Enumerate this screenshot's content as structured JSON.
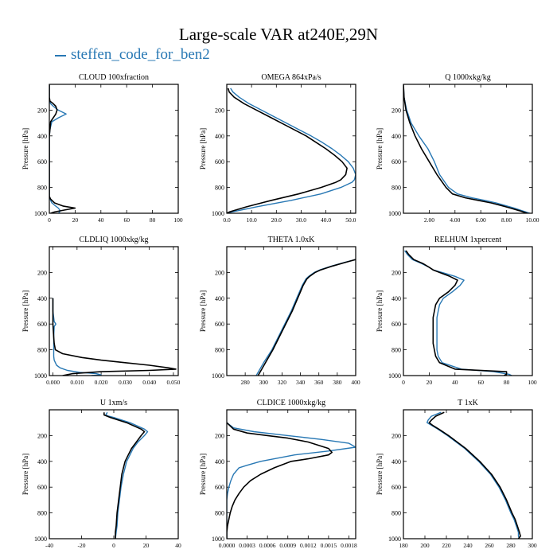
{
  "title": "Large-scale VAR at240E,29N",
  "legend": {
    "label": "steffen_code_for_ben2",
    "color": "#2878b4"
  },
  "colors": {
    "case_a": "#000000",
    "case_b": "#2878b4"
  },
  "chart_data": [
    {
      "type": "line",
      "title": "CLOUD  100xfraction",
      "ylabel": "Pressure [hPa]",
      "xlim": [
        0,
        100
      ],
      "ylim": [
        1000,
        0
      ],
      "yticks": [
        200,
        400,
        600,
        800,
        1000
      ],
      "xticks": [
        0,
        20,
        40,
        60,
        80,
        100
      ],
      "xticklabels": [
        "0",
        "20",
        "40",
        "60",
        "80",
        "100"
      ],
      "series": [
        {
          "p": [
            5,
            30,
            60,
            100,
            130,
            150,
            170,
            200,
            230,
            260,
            290,
            350,
            400,
            500,
            600,
            700,
            800,
            850,
            870,
            890,
            920,
            945,
            960,
            975,
            990,
            1000
          ],
          "values": [
            0,
            0,
            0,
            0,
            0.5,
            3,
            5,
            6,
            5,
            3,
            1,
            0.5,
            0,
            0,
            0,
            0,
            0,
            0,
            0,
            1,
            4,
            11,
            20,
            12,
            4,
            1
          ]
        },
        {
          "p": [
            5,
            30,
            60,
            100,
            130,
            150,
            170,
            200,
            230,
            260,
            290,
            350,
            400,
            500,
            600,
            700,
            800,
            850,
            870,
            890,
            920,
            945,
            960,
            975,
            990,
            1000
          ],
          "values": [
            0,
            0,
            0,
            0,
            0,
            1,
            3,
            7,
            13,
            7,
            2,
            0.5,
            0,
            0,
            0,
            0,
            0,
            0,
            0,
            0.5,
            2,
            5,
            7,
            8,
            8,
            7
          ]
        }
      ]
    },
    {
      "type": "line",
      "title": "OMEGA  864xPa/s",
      "ylabel": "Pressure [hPa]",
      "xlim": [
        0,
        52
      ],
      "ylim": [
        1000,
        0
      ],
      "yticks": [
        200,
        400,
        600,
        800,
        1000
      ],
      "xticks": [
        0,
        10,
        20,
        30,
        40,
        50
      ],
      "xticklabels": [
        "0.0",
        "10.0",
        "20.0",
        "30.0",
        "40.0",
        "50.0"
      ],
      "series": [
        {
          "p": [
            30,
            60,
            100,
            150,
            200,
            250,
            300,
            350,
            400,
            450,
            500,
            550,
            600,
            650,
            700,
            740,
            760,
            800,
            850,
            900,
            950,
            990,
            1000
          ],
          "values": [
            0.5,
            1,
            3,
            7,
            12,
            17,
            22,
            27,
            32,
            36,
            40,
            43.5,
            46.5,
            48.5,
            48,
            46,
            44,
            38,
            29,
            18,
            8,
            1,
            0
          ]
        },
        {
          "p": [
            30,
            60,
            100,
            150,
            200,
            250,
            300,
            350,
            400,
            450,
            500,
            550,
            600,
            650,
            700,
            740,
            760,
            800,
            850,
            900,
            950,
            990,
            1000
          ],
          "values": [
            1.5,
            2.5,
            5,
            9,
            14,
            19,
            24,
            29,
            34,
            38.5,
            42.5,
            46,
            49,
            51,
            52,
            51.5,
            50.5,
            46,
            38,
            26,
            12,
            2,
            0
          ]
        }
      ]
    },
    {
      "type": "line",
      "title": "Q  1000xkg/kg",
      "ylabel": "Pressure [hPa]",
      "xlim": [
        0,
        10
      ],
      "ylim": [
        1000,
        0
      ],
      "yticks": [
        200,
        400,
        600,
        800,
        1000
      ],
      "xticks": [
        2,
        4,
        6,
        8,
        10
      ],
      "xticklabels": [
        "2.00",
        "4.00",
        "6.00",
        "8.00",
        "10.00"
      ],
      "series": [
        {
          "p": [
            0,
            100,
            200,
            300,
            400,
            500,
            600,
            700,
            800,
            850,
            880,
            900,
            920,
            940,
            960,
            980,
            1000
          ],
          "values": [
            0,
            0.05,
            0.2,
            0.5,
            0.9,
            1.4,
            2,
            2.6,
            3.3,
            3.8,
            4.8,
            5.8,
            6.8,
            7.6,
            8.3,
            9,
            9.6
          ]
        },
        {
          "p": [
            0,
            100,
            200,
            300,
            400,
            500,
            600,
            700,
            800,
            850,
            880,
            900,
            920,
            940,
            960,
            980,
            1000
          ],
          "values": [
            0,
            0.05,
            0.25,
            0.6,
            1.2,
            1.9,
            2.4,
            2.8,
            3.5,
            4.2,
            5.3,
            6.3,
            7.2,
            7.9,
            8.6,
            9.2,
            9.8
          ]
        }
      ]
    },
    {
      "type": "line",
      "title": "CLDLIQ  1000xkg/kg",
      "ylabel": "Pressure [hPa]",
      "xlim": [
        -0.0015,
        0.052
      ],
      "ylim": [
        1000,
        0
      ],
      "yticks": [
        200,
        400,
        600,
        800,
        1000
      ],
      "xticks": [
        0,
        0.01,
        0.02,
        0.03,
        0.04,
        0.05
      ],
      "xticklabels": [
        "0.000",
        "0.010",
        "0.020",
        "0.030",
        "0.040",
        "0.050"
      ],
      "series": [
        {
          "p": [
            400,
            500,
            600,
            700,
            750,
            800,
            830,
            860,
            880,
            900,
            920,
            940,
            950,
            960,
            970,
            985,
            1000
          ],
          "values": [
            0,
            0,
            0,
            0.0003,
            0.0005,
            0.001,
            0.004,
            0.012,
            0.02,
            0.03,
            0.04,
            0.048,
            0.051,
            0.04,
            0.02,
            0.008,
            0.004
          ]
        },
        {
          "p": [
            400,
            500,
            580,
            600,
            620,
            700,
            800,
            850,
            880,
            900,
            920,
            940,
            960,
            975,
            985,
            995,
            1000
          ],
          "values": [
            0,
            0,
            0.0005,
            0.0012,
            0.0005,
            0.0003,
            0.0003,
            0.0003,
            0.0005,
            0.001,
            0.0015,
            0.003,
            0.006,
            0.011,
            0.018,
            0.02,
            0.016
          ]
        }
      ]
    },
    {
      "type": "line",
      "title": "THETA  1.0xK",
      "ylabel": "Pressure [hPa]",
      "xlim": [
        260,
        400
      ],
      "ylim": [
        1000,
        0
      ],
      "yticks": [
        200,
        400,
        600,
        800,
        1000
      ],
      "xticks": [
        280,
        300,
        320,
        340,
        360,
        380,
        400
      ],
      "xticklabels": [
        "280",
        "300",
        "320",
        "340",
        "360",
        "380",
        "400"
      ],
      "series": [
        {
          "p": [
            100,
            120,
            150,
            180,
            200,
            230,
            250,
            300,
            350,
            400,
            500,
            600,
            700,
            800,
            900,
            950,
            1000
          ],
          "values": [
            400,
            390,
            375,
            362,
            356,
            350,
            347,
            343,
            340,
            337,
            331,
            324,
            317,
            310,
            302,
            298,
            294
          ]
        },
        {
          "p": [
            100,
            120,
            150,
            180,
            200,
            230,
            250,
            300,
            350,
            400,
            500,
            600,
            700,
            800,
            900,
            950,
            1000
          ],
          "values": [
            400,
            389,
            374,
            361,
            355,
            349,
            346,
            342,
            339,
            336,
            330,
            323,
            316,
            309,
            300,
            296,
            292
          ]
        }
      ]
    },
    {
      "type": "line",
      "title": "RELHUM  1xpercent",
      "ylabel": "Pressure [hPa]",
      "xlim": [
        0,
        100
      ],
      "ylim": [
        1000,
        0
      ],
      "yticks": [
        200,
        400,
        600,
        800,
        1000
      ],
      "xticks": [
        0,
        20,
        40,
        60,
        80,
        100
      ],
      "xticklabels": [
        "0",
        "20",
        "40",
        "60",
        "80",
        "100"
      ],
      "series": [
        {
          "p": [
            30,
            60,
            100,
            130,
            160,
            180,
            200,
            230,
            260,
            300,
            350,
            400,
            450,
            500,
            550,
            600,
            650,
            700,
            750,
            800,
            850,
            900,
            950,
            970,
            990,
            1000
          ],
          "values": [
            2,
            4,
            8,
            15,
            20,
            23,
            28,
            36,
            42,
            40,
            35,
            28,
            25,
            24,
            23,
            23,
            23,
            23,
            23,
            24,
            25,
            28,
            40,
            80,
            80,
            78
          ]
        },
        {
          "p": [
            30,
            60,
            100,
            130,
            160,
            180,
            200,
            230,
            260,
            300,
            350,
            400,
            450,
            500,
            550,
            600,
            650,
            700,
            750,
            800,
            850,
            900,
            950,
            970,
            990,
            1000
          ],
          "values": [
            1,
            3,
            7,
            14,
            20,
            23,
            30,
            40,
            47,
            44,
            38,
            31,
            28,
            27,
            26,
            26,
            26,
            26,
            26,
            26,
            27,
            30,
            45,
            70,
            82,
            84
          ]
        }
      ]
    },
    {
      "type": "line",
      "title": "U  1xm/s",
      "ylabel": "Pressure [hPa]",
      "xlim": [
        -40,
        40
      ],
      "ylim": [
        1000,
        0
      ],
      "yticks": [
        200,
        400,
        600,
        800,
        1000
      ],
      "xticks": [
        -40,
        -20,
        0,
        20,
        40
      ],
      "xticklabels": [
        "-40",
        "-20",
        "0",
        "20",
        "40"
      ],
      "series": [
        {
          "p": [
            20,
            40,
            50,
            60,
            100,
            150,
            170,
            200,
            250,
            300,
            350,
            400,
            500,
            600,
            700,
            800,
            900,
            950,
            1000
          ],
          "values": [
            -6,
            -6,
            -4,
            -2,
            8,
            17,
            19,
            17,
            14,
            11,
            9,
            7,
            5,
            4,
            3,
            2,
            1.5,
            1,
            1
          ]
        },
        {
          "p": [
            20,
            40,
            50,
            60,
            100,
            150,
            170,
            200,
            250,
            300,
            350,
            400,
            500,
            600,
            700,
            800,
            900,
            950,
            1000
          ],
          "values": [
            -4,
            -5,
            -3,
            0,
            10,
            19,
            21,
            19,
            15,
            12,
            10,
            8,
            6,
            4.5,
            3.5,
            2.5,
            2,
            1.5,
            1
          ]
        }
      ]
    },
    {
      "type": "line",
      "title": "CLDICE  1000xkg/kg",
      "ylabel": "Pressure [hPa]",
      "xlim": [
        0,
        0.0019
      ],
      "ylim": [
        1000,
        0
      ],
      "yticks": [
        200,
        400,
        600,
        800,
        1000
      ],
      "xticks": [
        0,
        0.0003,
        0.0006,
        0.0009,
        0.0012,
        0.0015,
        0.0018
      ],
      "xticklabels": [
        "0.0000",
        "0.0003",
        "0.0006",
        "0.0009",
        "0.0012",
        "0.0015",
        "0.0018"
      ],
      "series": [
        {
          "p": [
            100,
            150,
            180,
            200,
            220,
            250,
            300,
            330,
            350,
            380,
            400,
            450,
            500,
            550,
            600,
            650,
            700,
            750,
            800,
            850,
            900,
            950,
            1000
          ],
          "values": [
            0,
            0.0001,
            0.0003,
            0.0006,
            0.0009,
            0.0012,
            0.0015,
            0.00155,
            0.0015,
            0.0012,
            0.00095,
            0.0007,
            0.0005,
            0.00035,
            0.00025,
            0.00018,
            0.00012,
            8e-05,
            5e-05,
            3e-05,
            1e-05,
            0,
            0
          ]
        },
        {
          "p": [
            100,
            140,
            170,
            200,
            230,
            260,
            290,
            320,
            350,
            400,
            430,
            450,
            500,
            550,
            600,
            650,
            700,
            800,
            900,
            1000
          ],
          "values": [
            0,
            0.0001,
            0.0004,
            0.0009,
            0.0014,
            0.0018,
            0.0019,
            0.0015,
            0.001,
            0.0005,
            0.0003,
            0.00018,
            0.0001,
            6e-05,
            3e-05,
            1e-05,
            0,
            0,
            0,
            0
          ]
        }
      ]
    },
    {
      "type": "line",
      "title": "T  1xK",
      "ylabel": "Pressure [hPa]",
      "xlim": [
        180,
        300
      ],
      "ylim": [
        1000,
        0
      ],
      "yticks": [
        200,
        400,
        600,
        800,
        1000
      ],
      "xticks": [
        180,
        200,
        220,
        240,
        260,
        280,
        300
      ],
      "xticklabels": [
        "180",
        "200",
        "220",
        "240",
        "260",
        "280",
        "300"
      ],
      "series": [
        {
          "p": [
            20,
            50,
            80,
            100,
            120,
            150,
            200,
            250,
            300,
            400,
            500,
            600,
            700,
            800,
            850,
            900,
            950,
            980,
            1000
          ],
          "values": [
            218,
            210,
            206,
            204,
            207,
            213,
            222,
            230,
            238,
            251,
            262,
            270,
            276,
            281,
            284,
            286,
            288,
            289,
            287
          ]
        },
        {
          "p": [
            20,
            50,
            80,
            100,
            120,
            150,
            200,
            250,
            300,
            400,
            500,
            600,
            700,
            800,
            850,
            900,
            950,
            980,
            1000
          ],
          "values": [
            215,
            206,
            203,
            202,
            206,
            212,
            221,
            229,
            237,
            250,
            261,
            269,
            275,
            280,
            283,
            285,
            287,
            287,
            288
          ]
        }
      ]
    }
  ]
}
